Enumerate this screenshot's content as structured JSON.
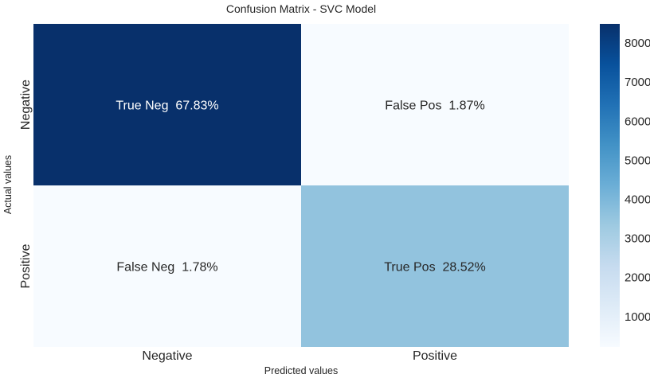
{
  "chart_data": {
    "type": "heatmap",
    "title": "Confusion Matrix - SVC Model",
    "xlabel": "Predicted values",
    "ylabel": "Actual values",
    "x_categories": [
      "Negative",
      "Positive"
    ],
    "y_categories": [
      "Negative",
      "Positive"
    ],
    "values": [
      [
        8490,
        234
      ],
      [
        223,
        3570
      ]
    ],
    "cell_labels": [
      [
        "True Neg  67.83%",
        "False Pos  1.87%"
      ],
      [
        "False Neg  1.78%",
        "True Pos  28.52%"
      ]
    ],
    "colormap": "Blues",
    "colorbar": {
      "range": [
        223,
        8490
      ],
      "ticks": [
        1000,
        2000,
        3000,
        4000,
        5000,
        6000,
        7000,
        8000
      ],
      "tick_labels": [
        "1000",
        "2000",
        "3000",
        "4000",
        "5000",
        "6000",
        "7000",
        "8000"
      ]
    },
    "grid": false
  }
}
